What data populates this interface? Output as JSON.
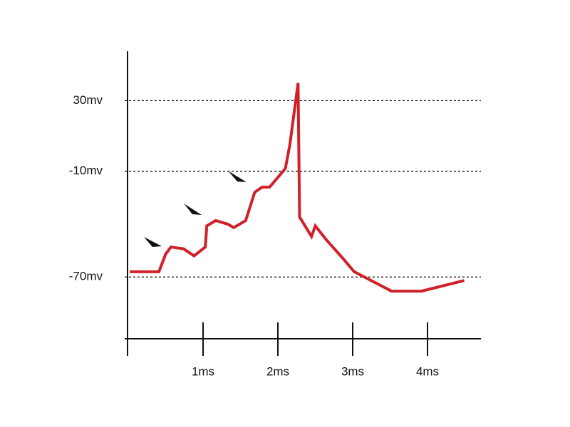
{
  "chart_data": {
    "type": "line",
    "x": [
      0.02,
      0.41,
      0.5,
      0.57,
      0.74,
      0.88,
      1.03,
      1.05,
      1.17,
      1.33,
      1.41,
      1.57,
      1.69,
      1.79,
      1.89,
      2.1,
      2.16,
      2.27,
      2.29,
      2.45,
      2.5,
      2.65,
      2.86,
      3.02,
      3.52,
      3.92,
      4.49
    ],
    "values": [
      -67,
      -67,
      -57,
      -53,
      -54,
      -58,
      -53,
      -41,
      -38,
      -40,
      -42,
      -38,
      -22,
      -19,
      -19,
      -8.5,
      5,
      40,
      -36,
      -47,
      -41,
      -49,
      -59,
      -67,
      -78,
      -78,
      -72
    ],
    "color": "#d0202a",
    "xlim": [
      0,
      4.7
    ],
    "ylim": [
      -105,
      58
    ],
    "xticks": [
      {
        "value": 1,
        "label": "1ms"
      },
      {
        "value": 2,
        "label": "2ms"
      },
      {
        "value": 3,
        "label": "3ms"
      },
      {
        "value": 4,
        "label": "4ms"
      }
    ],
    "yticks": [
      {
        "value": 30,
        "label": "30mv"
      },
      {
        "value": -10,
        "label": "-10mv"
      },
      {
        "value": -70,
        "label": "-70mv"
      }
    ],
    "grid": true
  }
}
